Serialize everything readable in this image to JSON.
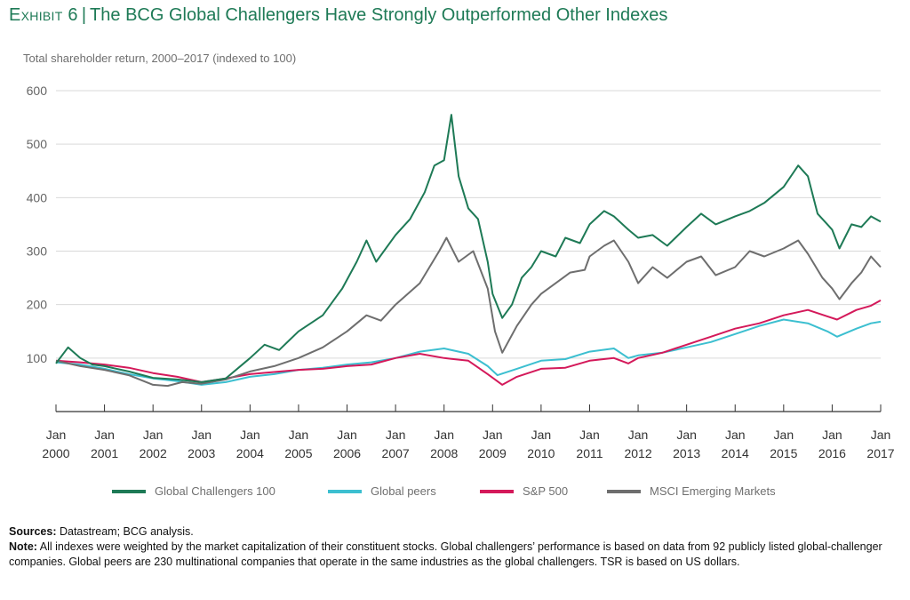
{
  "header": {
    "exhibit": "Exhibit 6",
    "separator": "|",
    "title": "The BCG Global Challengers Have Strongly Outperformed Other Indexes",
    "subtitle": "Total shareholder return, 2000–2017 (indexed to 100)"
  },
  "footer": {
    "sources_label": "Sources:",
    "sources_text": " Datastream; BCG analysis.",
    "note_label": "Note:",
    "note_text": " All indexes were weighted by the market capitalization of their constituent stocks. Global challengers’ performance is based on data from 92 publicly listed global-challenger companies. Global peers are 230 multinational companies that operate in the same industries as the global challengers. TSR is based on US dollars."
  },
  "chart_data": {
    "type": "line",
    "title": "The BCG Global Challengers Have Strongly Outperformed Other Indexes",
    "ylabel": "Total shareholder return, 2000–2017 (indexed to 100)",
    "xlabel": "",
    "ylim": [
      0,
      600
    ],
    "xlim": [
      2000,
      2017
    ],
    "y_ticks": [
      100,
      200,
      300,
      400,
      500,
      600
    ],
    "x_ticks": [
      {
        "x": 2000,
        "label1": "Jan",
        "label2": "2000"
      },
      {
        "x": 2001,
        "label1": "Jan",
        "label2": "2001"
      },
      {
        "x": 2002,
        "label1": "Jan",
        "label2": "2002"
      },
      {
        "x": 2003,
        "label1": "Jan",
        "label2": "2003"
      },
      {
        "x": 2004,
        "label1": "Jan",
        "label2": "2004"
      },
      {
        "x": 2005,
        "label1": "Jan",
        "label2": "2005"
      },
      {
        "x": 2006,
        "label1": "Jan",
        "label2": "2006"
      },
      {
        "x": 2007,
        "label1": "Jan",
        "label2": "2007"
      },
      {
        "x": 2008,
        "label1": "Jan",
        "label2": "2008"
      },
      {
        "x": 2009,
        "label1": "Jan",
        "label2": "2009"
      },
      {
        "x": 2010,
        "label1": "Jan",
        "label2": "2010"
      },
      {
        "x": 2011,
        "label1": "Jan",
        "label2": "2011"
      },
      {
        "x": 2012,
        "label1": "Jan",
        "label2": "2012"
      },
      {
        "x": 2013,
        "label1": "Jan",
        "label2": "2013"
      },
      {
        "x": 2014,
        "label1": "Jan",
        "label2": "2014"
      },
      {
        "x": 2015,
        "label1": "Jan",
        "label2": "2015"
      },
      {
        "x": 2016,
        "label1": "Jan",
        "label2": "2016"
      },
      {
        "x": 2017,
        "label1": "Jan",
        "label2": "2017"
      }
    ],
    "grid": true,
    "legend_position": "bottom",
    "series": [
      {
        "name": "Global Challengers 100",
        "color": "#1e7a56",
        "points": [
          [
            2000,
            90
          ],
          [
            2000.25,
            120
          ],
          [
            2000.5,
            100
          ],
          [
            2000.75,
            88
          ],
          [
            2001,
            85
          ],
          [
            2001.5,
            75
          ],
          [
            2002,
            63
          ],
          [
            2002.5,
            60
          ],
          [
            2003,
            55
          ],
          [
            2003.5,
            62
          ],
          [
            2004,
            100
          ],
          [
            2004.3,
            125
          ],
          [
            2004.6,
            115
          ],
          [
            2005,
            150
          ],
          [
            2005.5,
            180
          ],
          [
            2005.9,
            230
          ],
          [
            2006.2,
            280
          ],
          [
            2006.4,
            320
          ],
          [
            2006.6,
            280
          ],
          [
            2007,
            330
          ],
          [
            2007.3,
            360
          ],
          [
            2007.6,
            410
          ],
          [
            2007.8,
            460
          ],
          [
            2008.0,
            470
          ],
          [
            2008.15,
            555
          ],
          [
            2008.3,
            440
          ],
          [
            2008.5,
            380
          ],
          [
            2008.7,
            360
          ],
          [
            2008.9,
            280
          ],
          [
            2009.0,
            220
          ],
          [
            2009.2,
            175
          ],
          [
            2009.4,
            200
          ],
          [
            2009.6,
            250
          ],
          [
            2009.8,
            270
          ],
          [
            2010.0,
            300
          ],
          [
            2010.3,
            290
          ],
          [
            2010.5,
            325
          ],
          [
            2010.8,
            315
          ],
          [
            2011.0,
            350
          ],
          [
            2011.3,
            375
          ],
          [
            2011.5,
            365
          ],
          [
            2011.8,
            340
          ],
          [
            2012.0,
            325
          ],
          [
            2012.3,
            330
          ],
          [
            2012.6,
            310
          ],
          [
            2013.0,
            345
          ],
          [
            2013.3,
            370
          ],
          [
            2013.6,
            350
          ],
          [
            2014.0,
            365
          ],
          [
            2014.3,
            375
          ],
          [
            2014.6,
            390
          ],
          [
            2015.0,
            420
          ],
          [
            2015.3,
            460
          ],
          [
            2015.5,
            440
          ],
          [
            2015.7,
            370
          ],
          [
            2015.9,
            350
          ],
          [
            2016.0,
            340
          ],
          [
            2016.15,
            305
          ],
          [
            2016.4,
            350
          ],
          [
            2016.6,
            345
          ],
          [
            2016.8,
            365
          ],
          [
            2017.0,
            355
          ]
        ]
      },
      {
        "name": "Global peers",
        "color": "#3cbfd0",
        "points": [
          [
            2000,
            92
          ],
          [
            2000.5,
            88
          ],
          [
            2001,
            80
          ],
          [
            2001.5,
            70
          ],
          [
            2002,
            62
          ],
          [
            2002.5,
            57
          ],
          [
            2003,
            50
          ],
          [
            2003.5,
            55
          ],
          [
            2004,
            65
          ],
          [
            2004.5,
            70
          ],
          [
            2005,
            78
          ],
          [
            2005.5,
            82
          ],
          [
            2006,
            88
          ],
          [
            2006.5,
            92
          ],
          [
            2007,
            100
          ],
          [
            2007.5,
            112
          ],
          [
            2008,
            118
          ],
          [
            2008.5,
            108
          ],
          [
            2008.9,
            85
          ],
          [
            2009.1,
            68
          ],
          [
            2009.5,
            80
          ],
          [
            2010,
            95
          ],
          [
            2010.5,
            98
          ],
          [
            2011,
            112
          ],
          [
            2011.5,
            118
          ],
          [
            2011.8,
            100
          ],
          [
            2012,
            105
          ],
          [
            2012.5,
            110
          ],
          [
            2013,
            120
          ],
          [
            2013.5,
            130
          ],
          [
            2014,
            145
          ],
          [
            2014.5,
            160
          ],
          [
            2015,
            172
          ],
          [
            2015.5,
            165
          ],
          [
            2015.9,
            150
          ],
          [
            2016.1,
            140
          ],
          [
            2016.5,
            155
          ],
          [
            2016.8,
            165
          ],
          [
            2017,
            168
          ]
        ]
      },
      {
        "name": "S&P 500",
        "color": "#d4195a",
        "points": [
          [
            2000,
            95
          ],
          [
            2000.5,
            92
          ],
          [
            2001,
            88
          ],
          [
            2001.5,
            82
          ],
          [
            2002,
            72
          ],
          [
            2002.5,
            65
          ],
          [
            2003,
            55
          ],
          [
            2003.5,
            62
          ],
          [
            2004,
            70
          ],
          [
            2004.5,
            74
          ],
          [
            2005,
            78
          ],
          [
            2005.5,
            80
          ],
          [
            2006,
            85
          ],
          [
            2006.5,
            88
          ],
          [
            2007,
            100
          ],
          [
            2007.5,
            108
          ],
          [
            2008,
            100
          ],
          [
            2008.5,
            95
          ],
          [
            2008.9,
            70
          ],
          [
            2009.2,
            50
          ],
          [
            2009.5,
            65
          ],
          [
            2010,
            80
          ],
          [
            2010.5,
            82
          ],
          [
            2011,
            95
          ],
          [
            2011.5,
            100
          ],
          [
            2011.8,
            90
          ],
          [
            2012,
            100
          ],
          [
            2012.5,
            110
          ],
          [
            2013,
            125
          ],
          [
            2013.5,
            140
          ],
          [
            2014,
            155
          ],
          [
            2014.5,
            165
          ],
          [
            2015,
            180
          ],
          [
            2015.5,
            190
          ],
          [
            2015.9,
            178
          ],
          [
            2016.1,
            172
          ],
          [
            2016.5,
            190
          ],
          [
            2016.8,
            198
          ],
          [
            2017,
            208
          ]
        ]
      },
      {
        "name": "MSCI Emerging Markets",
        "color": "#6e6e6e",
        "points": [
          [
            2000,
            95
          ],
          [
            2000.5,
            85
          ],
          [
            2001,
            78
          ],
          [
            2001.5,
            68
          ],
          [
            2002,
            50
          ],
          [
            2002.3,
            48
          ],
          [
            2002.6,
            55
          ],
          [
            2003,
            52
          ],
          [
            2003.5,
            60
          ],
          [
            2004,
            75
          ],
          [
            2004.5,
            85
          ],
          [
            2005,
            100
          ],
          [
            2005.5,
            120
          ],
          [
            2006,
            150
          ],
          [
            2006.4,
            180
          ],
          [
            2006.7,
            170
          ],
          [
            2007,
            200
          ],
          [
            2007.5,
            240
          ],
          [
            2007.9,
            300
          ],
          [
            2008.05,
            325
          ],
          [
            2008.3,
            280
          ],
          [
            2008.6,
            300
          ],
          [
            2008.9,
            230
          ],
          [
            2009.05,
            150
          ],
          [
            2009.2,
            110
          ],
          [
            2009.5,
            160
          ],
          [
            2009.8,
            200
          ],
          [
            2010,
            220
          ],
          [
            2010.3,
            240
          ],
          [
            2010.6,
            260
          ],
          [
            2010.9,
            265
          ],
          [
            2011.0,
            290
          ],
          [
            2011.3,
            310
          ],
          [
            2011.5,
            320
          ],
          [
            2011.8,
            280
          ],
          [
            2012.0,
            240
          ],
          [
            2012.3,
            270
          ],
          [
            2012.6,
            250
          ],
          [
            2013.0,
            280
          ],
          [
            2013.3,
            290
          ],
          [
            2013.6,
            255
          ],
          [
            2014.0,
            270
          ],
          [
            2014.3,
            300
          ],
          [
            2014.6,
            290
          ],
          [
            2015.0,
            305
          ],
          [
            2015.3,
            320
          ],
          [
            2015.5,
            295
          ],
          [
            2015.8,
            250
          ],
          [
            2016.0,
            230
          ],
          [
            2016.15,
            210
          ],
          [
            2016.4,
            240
          ],
          [
            2016.6,
            260
          ],
          [
            2016.8,
            290
          ],
          [
            2017.0,
            270
          ]
        ]
      }
    ]
  }
}
